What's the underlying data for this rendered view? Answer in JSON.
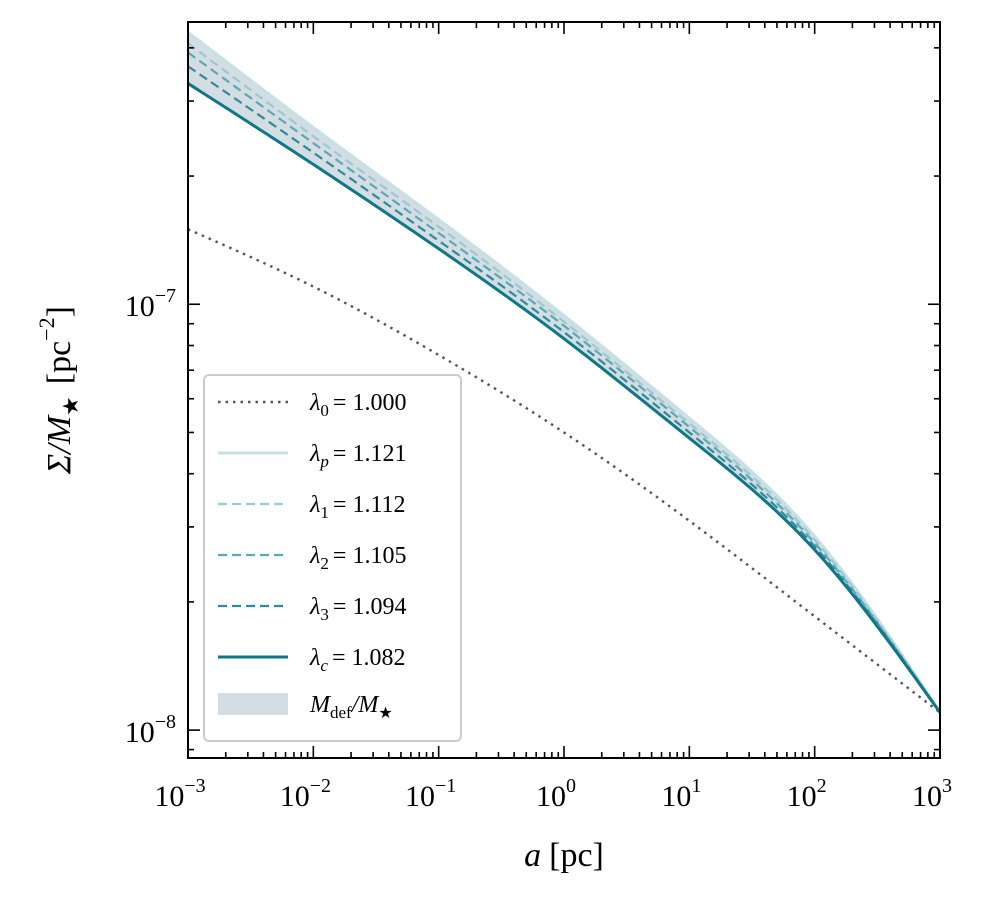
{
  "chart_data": {
    "type": "line",
    "title": "",
    "xlabel": {
      "var": "a",
      "unit": "[pc]"
    },
    "ylabel": {
      "main": "Σ/M",
      "sub": "★",
      "unit": "[pc",
      "unit_exp": "−2",
      "unit_close": "]"
    },
    "xscale": "log",
    "yscale": "log",
    "xlim": [
      0.001,
      1000
    ],
    "ylim": [
      8.6e-09,
      4.6e-07
    ],
    "x_ticks": [
      {
        "value": 0.001,
        "base": "10",
        "exp": "−3"
      },
      {
        "value": 0.01,
        "base": "10",
        "exp": "−2"
      },
      {
        "value": 0.1,
        "base": "10",
        "exp": "−1"
      },
      {
        "value": 1,
        "base": "10",
        "exp": "0"
      },
      {
        "value": 10,
        "base": "10",
        "exp": "1"
      },
      {
        "value": 100,
        "base": "10",
        "exp": "2"
      },
      {
        "value": 1000,
        "base": "10",
        "exp": "3"
      }
    ],
    "y_ticks": [
      {
        "value": 1e-08,
        "base": "10",
        "exp": "−8"
      },
      {
        "value": 1e-07,
        "base": "10",
        "exp": "−7"
      }
    ],
    "x": [
      0.001,
      0.01,
      0.1,
      1,
      10,
      100,
      1000
    ],
    "series": [
      {
        "name": "lambda_0",
        "sym": "λ",
        "sub": "0",
        "value_text": "= 1.000",
        "lambda": 1.0,
        "style": "dotted",
        "color": "#555555",
        "values": [
          1.5e-07,
          1.1e-07,
          7.6e-08,
          5e-08,
          3.1e-08,
          1.85e-08,
          1.1e-08
        ]
      },
      {
        "name": "lambda_p",
        "sym": "λ",
        "sub": "p",
        "value_text": "= 1.121",
        "lambda": 1.121,
        "style": "solid-light",
        "color": "#c5e0e6",
        "values": [
          4.35e-07,
          2.6e-07,
          1.58e-07,
          9.4e-08,
          5.4e-08,
          2.85e-08,
          1.1e-08
        ]
      },
      {
        "name": "lambda_1",
        "sym": "λ",
        "sub": "1",
        "value_text": "= 1.112",
        "lambda": 1.112,
        "style": "dashed",
        "color": "#98cad4",
        "values": [
          4.1e-07,
          2.48e-07,
          1.52e-07,
          9.1e-08,
          5.25e-08,
          2.8e-08,
          1.1e-08
        ]
      },
      {
        "name": "lambda_2",
        "sym": "λ",
        "sub": "2",
        "value_text": "= 1.105",
        "lambda": 1.105,
        "style": "dashed",
        "color": "#5aa9b8",
        "values": [
          3.9e-07,
          2.39e-07,
          1.47e-07,
          8.9e-08,
          5.15e-08,
          2.75e-08,
          1.1e-08
        ]
      },
      {
        "name": "lambda_3",
        "sym": "λ",
        "sub": "3",
        "value_text": "= 1.094",
        "lambda": 1.094,
        "style": "dashed",
        "color": "#2e8b9c",
        "values": [
          3.62e-07,
          2.27e-07,
          1.41e-07,
          8.6e-08,
          5e-08,
          2.7e-08,
          1.1e-08
        ]
      },
      {
        "name": "lambda_c",
        "sym": "λ",
        "sub": "c",
        "value_text": "= 1.082",
        "lambda": 1.082,
        "style": "solid",
        "color": "#0e7788",
        "values": [
          3.3e-07,
          2.13e-07,
          1.35e-07,
          8.3e-08,
          4.85e-08,
          2.65e-08,
          1.1e-08
        ]
      }
    ],
    "band": {
      "name": "M_def/M_star",
      "main": "M",
      "sub": "def",
      "mid": "/M",
      "sub2": "★",
      "color": "#d4dde1",
      "lower": "lambda_c",
      "upper": "lambda_p"
    },
    "legend_position": "lower-left",
    "grid": false
  }
}
